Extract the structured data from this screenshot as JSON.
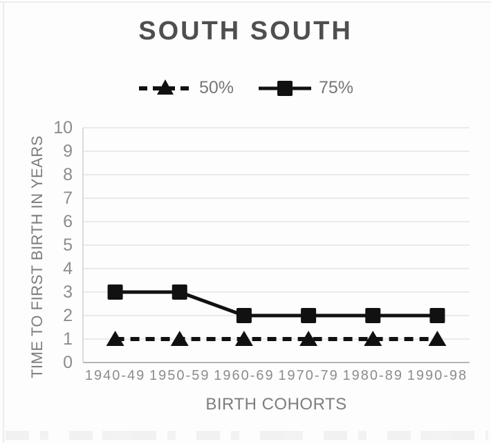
{
  "chart_data": {
    "type": "line",
    "title": "SOUTH SOUTH",
    "categories": [
      "1940-49",
      "1950-59",
      "1960-69",
      "1970-79",
      "1980-89",
      "1990-98"
    ],
    "series": [
      {
        "name": "50%",
        "values": [
          1,
          1,
          1,
          1,
          1,
          1
        ],
        "marker": "triangle",
        "line_style": "dashed"
      },
      {
        "name": "75%",
        "values": [
          3,
          3,
          2,
          2,
          2,
          2
        ],
        "marker": "square",
        "line_style": "solid"
      }
    ],
    "xlabel": "BIRTH COHORTS",
    "ylabel": "TIME TO FIRST BIRTH IN YEARS",
    "ylim": [
      0,
      10
    ],
    "yticks": [
      0,
      1,
      2,
      3,
      4,
      5,
      6,
      7,
      8,
      9,
      10
    ],
    "grid": true,
    "legend_position": "top"
  },
  "colors": {
    "series": "#111111",
    "title_text": "#4f4f4f",
    "axis_text": "#8c8c8c",
    "axis_title_text": "#7d7d7d",
    "gridline": "#e3e3e3",
    "axis_line": "#b5b5b5"
  }
}
